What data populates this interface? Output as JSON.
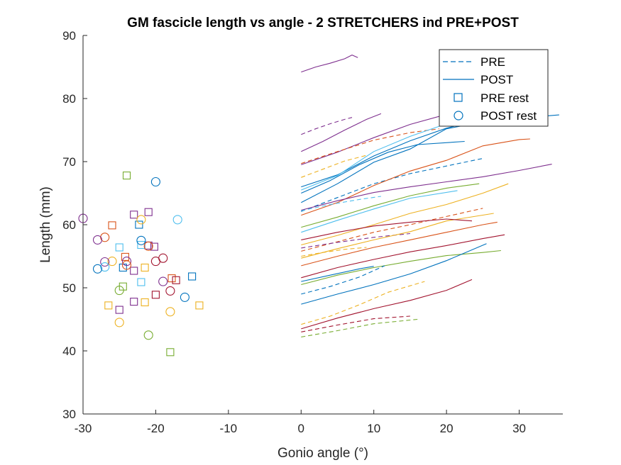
{
  "chart_data": {
    "type": "line",
    "title": "GM fascicle length vs angle - 2 STRETCHERS ind PRE+POST",
    "xlabel": "Gonio angle (°)",
    "ylabel": "Length (mm)",
    "xlim": [
      -30,
      36
    ],
    "ylim": [
      30,
      90
    ],
    "xticks": [
      -30,
      -20,
      -10,
      0,
      10,
      20,
      30
    ],
    "yticks": [
      30,
      40,
      50,
      60,
      70,
      80,
      90
    ],
    "grid": false,
    "legend_position": "top-right",
    "legend": [
      {
        "label": "PRE",
        "symbol": "dashed-line",
        "color": "#0072BD"
      },
      {
        "label": "POST",
        "symbol": "solid-line",
        "color": "#0072BD"
      },
      {
        "label": "PRE rest",
        "symbol": "square",
        "color": "#0072BD"
      },
      {
        "label": "POST rest",
        "symbol": "circle",
        "color": "#0072BD"
      }
    ],
    "palette": [
      "#0072BD",
      "#D95319",
      "#EDB120",
      "#7E2F8E",
      "#77AC30",
      "#4DBEEE",
      "#A2142F"
    ],
    "curves": [
      {
        "style": "solid",
        "color": "#7E2F8E",
        "points": [
          [
            0,
            84.2
          ],
          [
            2,
            85.0
          ],
          [
            4,
            85.6
          ],
          [
            6,
            86.3
          ],
          [
            7,
            86.9
          ],
          [
            7.8,
            86.5
          ]
        ]
      },
      {
        "style": "dashed",
        "color": "#7E2F8E",
        "points": [
          [
            0,
            74.3
          ],
          [
            2,
            75.2
          ],
          [
            4,
            76.0
          ],
          [
            6,
            76.7
          ],
          [
            7,
            77.0
          ]
        ]
      },
      {
        "style": "solid",
        "color": "#7E2F8E",
        "points": [
          [
            0,
            71.6
          ],
          [
            3,
            73.2
          ],
          [
            6,
            75.0
          ],
          [
            9,
            76.7
          ],
          [
            11,
            77.6
          ]
        ]
      },
      {
        "style": "solid",
        "color": "#7E2F8E",
        "points": [
          [
            0,
            69.5
          ],
          [
            5,
            71.5
          ],
          [
            10,
            73.8
          ],
          [
            15,
            75.9
          ],
          [
            20,
            77.5
          ],
          [
            25,
            78.2
          ]
        ]
      },
      {
        "style": "dashed",
        "color": "#D95319",
        "points": [
          [
            0,
            69.7
          ],
          [
            5,
            71.6
          ],
          [
            10,
            73.4
          ],
          [
            15,
            74.6
          ],
          [
            19,
            75.2
          ]
        ]
      },
      {
        "style": "dashed",
        "color": "#EDB120",
        "points": [
          [
            0,
            67.5
          ],
          [
            3,
            68.8
          ],
          [
            6,
            70.1
          ],
          [
            9,
            71.0
          ]
        ]
      },
      {
        "style": "solid",
        "color": "#0072BD",
        "points": [
          [
            0,
            66.0
          ],
          [
            5,
            67.9
          ],
          [
            10,
            70.9
          ],
          [
            15,
            73.3
          ],
          [
            20,
            75.3
          ],
          [
            26,
            77.0
          ]
        ]
      },
      {
        "style": "solid",
        "color": "#4DBEEE",
        "points": [
          [
            0,
            65.5
          ],
          [
            5,
            67.8
          ],
          [
            10,
            71.6
          ],
          [
            15,
            74.0
          ],
          [
            20,
            76.0
          ]
        ]
      },
      {
        "style": "solid",
        "color": "#0072BD",
        "points": [
          [
            0,
            63.5
          ],
          [
            5,
            66.5
          ],
          [
            10,
            69.9
          ],
          [
            15,
            72.0
          ],
          [
            20,
            75.2
          ],
          [
            25,
            76.3
          ],
          [
            30,
            76.9
          ],
          [
            35.5,
            77.4
          ]
        ]
      },
      {
        "style": "dashed",
        "color": "#0072BD",
        "points": [
          [
            0,
            62.1
          ],
          [
            5,
            64.3
          ],
          [
            10,
            66.5
          ],
          [
            15,
            68.1
          ],
          [
            20,
            69.3
          ],
          [
            25,
            70.5
          ]
        ]
      },
      {
        "style": "solid",
        "color": "#D95319",
        "points": [
          [
            0,
            61.5
          ],
          [
            5,
            63.5
          ],
          [
            10,
            66.2
          ],
          [
            15,
            68.5
          ],
          [
            20,
            70.2
          ],
          [
            25,
            72.5
          ],
          [
            30,
            73.5
          ],
          [
            31.5,
            73.6
          ]
        ]
      },
      {
        "style": "solid",
        "color": "#0072BD",
        "points": [
          [
            0,
            65.0
          ],
          [
            4,
            67.0
          ],
          [
            8,
            69.5
          ],
          [
            12,
            71.5
          ],
          [
            16,
            72.7
          ],
          [
            22.5,
            73.2
          ]
        ]
      },
      {
        "style": "solid",
        "color": "#7E2F8E",
        "points": [
          [
            0,
            62.3
          ],
          [
            5,
            63.8
          ],
          [
            10,
            65.1
          ],
          [
            15,
            66.0
          ],
          [
            20,
            66.8
          ],
          [
            25,
            67.6
          ],
          [
            30,
            68.6
          ],
          [
            34.5,
            69.6
          ]
        ]
      },
      {
        "style": "dashed",
        "color": "#4DBEEE",
        "points": [
          [
            0,
            62.2
          ],
          [
            4,
            63.2
          ],
          [
            8,
            64.0
          ],
          [
            11,
            64.5
          ]
        ]
      },
      {
        "style": "solid",
        "color": "#77AC30",
        "points": [
          [
            0,
            59.6
          ],
          [
            5,
            61.2
          ],
          [
            10,
            63.0
          ],
          [
            15,
            64.6
          ],
          [
            20,
            65.8
          ],
          [
            24.5,
            66.5
          ]
        ]
      },
      {
        "style": "solid",
        "color": "#4DBEEE",
        "points": [
          [
            0,
            58.8
          ],
          [
            5,
            60.7
          ],
          [
            10,
            62.5
          ],
          [
            15,
            64.2
          ],
          [
            21.5,
            65.4
          ]
        ]
      },
      {
        "style": "solid",
        "color": "#EDB120",
        "points": [
          [
            0,
            56.8
          ],
          [
            5,
            58.3
          ],
          [
            10,
            60.0
          ],
          [
            15,
            61.8
          ],
          [
            20,
            63.2
          ],
          [
            25,
            65.0
          ],
          [
            28.5,
            66.5
          ]
        ]
      },
      {
        "style": "dashed",
        "color": "#D95319",
        "points": [
          [
            0,
            55.8
          ],
          [
            5,
            57.3
          ],
          [
            10,
            58.8
          ],
          [
            15,
            60.0
          ],
          [
            20,
            61.3
          ],
          [
            25,
            62.6
          ]
        ]
      },
      {
        "style": "dashed",
        "color": "#7E2F8E",
        "points": [
          [
            0,
            56.3
          ],
          [
            5,
            57.2
          ],
          [
            10,
            58.0
          ],
          [
            15,
            58.6
          ]
        ]
      },
      {
        "style": "solid",
        "color": "#EDB120",
        "points": [
          [
            0,
            54.7
          ],
          [
            5,
            56.2
          ],
          [
            10,
            57.6
          ],
          [
            15,
            58.9
          ],
          [
            20,
            60.6
          ],
          [
            26.5,
            61.8
          ]
        ]
      },
      {
        "style": "solid",
        "color": "#A2142F",
        "points": [
          [
            0,
            57.6
          ],
          [
            5,
            58.8
          ],
          [
            10,
            59.8
          ],
          [
            15,
            60.4
          ],
          [
            20,
            60.9
          ],
          [
            23.5,
            60.6
          ]
        ]
      },
      {
        "style": "solid",
        "color": "#D95319",
        "points": [
          [
            0,
            53.5
          ],
          [
            5,
            55.0
          ],
          [
            10,
            56.4
          ],
          [
            15,
            57.6
          ],
          [
            20,
            58.8
          ],
          [
            25,
            60.0
          ],
          [
            27,
            60.4
          ]
        ]
      },
      {
        "style": "dashed",
        "color": "#EDB120",
        "points": [
          [
            0,
            55.0
          ],
          [
            3,
            55.6
          ],
          [
            6,
            56.1
          ],
          [
            9,
            56.4
          ]
        ]
      },
      {
        "style": "solid",
        "color": "#A2142F",
        "points": [
          [
            0,
            51.6
          ],
          [
            5,
            53.2
          ],
          [
            10,
            54.5
          ],
          [
            15,
            55.7
          ],
          [
            20,
            56.7
          ],
          [
            25,
            57.8
          ],
          [
            28,
            58.4
          ]
        ]
      },
      {
        "style": "solid",
        "color": "#77AC30",
        "points": [
          [
            0,
            50.5
          ],
          [
            5,
            52.0
          ],
          [
            10,
            53.2
          ],
          [
            15,
            54.2
          ],
          [
            20,
            55.1
          ],
          [
            25,
            55.6
          ],
          [
            27.5,
            55.9
          ]
        ]
      },
      {
        "style": "solid",
        "color": "#0072BD",
        "points": [
          [
            0,
            51.0
          ],
          [
            4,
            52.0
          ],
          [
            8,
            53.0
          ],
          [
            10,
            53.4
          ]
        ]
      },
      {
        "style": "dashed",
        "color": "#0072BD",
        "points": [
          [
            0,
            49.0
          ],
          [
            4,
            50.2
          ],
          [
            8,
            51.7
          ],
          [
            11.5,
            53.5
          ]
        ]
      },
      {
        "style": "solid",
        "color": "#0072BD",
        "points": [
          [
            0,
            47.4
          ],
          [
            5,
            49.0
          ],
          [
            10,
            50.5
          ],
          [
            15,
            52.2
          ],
          [
            20,
            54.3
          ],
          [
            25.5,
            57.0
          ]
        ]
      },
      {
        "style": "dashed",
        "color": "#EDB120",
        "points": [
          [
            0,
            44.2
          ],
          [
            4,
            45.5
          ],
          [
            8,
            47.3
          ],
          [
            12,
            49.3
          ],
          [
            17,
            51.0
          ]
        ]
      },
      {
        "style": "solid",
        "color": "#A2142F",
        "points": [
          [
            0,
            43.5
          ],
          [
            5,
            45.2
          ],
          [
            10,
            46.7
          ],
          [
            15,
            48.0
          ],
          [
            20,
            49.6
          ],
          [
            23.5,
            51.3
          ]
        ]
      },
      {
        "style": "dashed",
        "color": "#A2142F",
        "points": [
          [
            0,
            43.0
          ],
          [
            5,
            44.1
          ],
          [
            10,
            45.1
          ],
          [
            15,
            45.5
          ]
        ]
      },
      {
        "style": "dashed",
        "color": "#77AC30",
        "points": [
          [
            0,
            42.2
          ],
          [
            5,
            43.2
          ],
          [
            10,
            44.3
          ],
          [
            16,
            45.0
          ]
        ]
      }
    ],
    "pre_rest": [
      {
        "x": -24,
        "y": 67.8,
        "color": "#77AC30"
      },
      {
        "x": -21,
        "y": 62.0,
        "color": "#7E2F8E"
      },
      {
        "x": -23,
        "y": 61.6,
        "color": "#7E2F8E"
      },
      {
        "x": -22.3,
        "y": 60.0,
        "color": "#0072BD"
      },
      {
        "x": -26,
        "y": 59.9,
        "color": "#D95319"
      },
      {
        "x": -21,
        "y": 56.7,
        "color": "#7E2F8E"
      },
      {
        "x": -20.2,
        "y": 56.5,
        "color": "#7E2F8E"
      },
      {
        "x": -25,
        "y": 56.4,
        "color": "#4DBEEE"
      },
      {
        "x": -22,
        "y": 56.8,
        "color": "#4DBEEE"
      },
      {
        "x": -24.2,
        "y": 54.9,
        "color": "#D95319"
      },
      {
        "x": -24.5,
        "y": 53.2,
        "color": "#0072BD"
      },
      {
        "x": -21.5,
        "y": 53.2,
        "color": "#EDB120"
      },
      {
        "x": -23,
        "y": 52.7,
        "color": "#7E2F8E"
      },
      {
        "x": -17.8,
        "y": 51.5,
        "color": "#D95319"
      },
      {
        "x": -17.2,
        "y": 51.2,
        "color": "#A2142F"
      },
      {
        "x": -15,
        "y": 51.8,
        "color": "#0072BD"
      },
      {
        "x": -22,
        "y": 50.9,
        "color": "#4DBEEE"
      },
      {
        "x": -24.5,
        "y": 50.2,
        "color": "#77AC30"
      },
      {
        "x": -20,
        "y": 48.9,
        "color": "#A2142F"
      },
      {
        "x": -23,
        "y": 47.8,
        "color": "#7E2F8E"
      },
      {
        "x": -21.5,
        "y": 47.7,
        "color": "#EDB120"
      },
      {
        "x": -26.5,
        "y": 47.2,
        "color": "#EDB120"
      },
      {
        "x": -14,
        "y": 47.2,
        "color": "#EDB120"
      },
      {
        "x": -25,
        "y": 46.5,
        "color": "#7E2F8E"
      },
      {
        "x": -18,
        "y": 39.8,
        "color": "#77AC30"
      }
    ],
    "post_rest": [
      {
        "x": -20,
        "y": 66.8,
        "color": "#0072BD"
      },
      {
        "x": -30,
        "y": 61.0,
        "color": "#7E2F8E"
      },
      {
        "x": -17,
        "y": 60.8,
        "color": "#4DBEEE"
      },
      {
        "x": -22,
        "y": 60.8,
        "color": "#EDB120"
      },
      {
        "x": -27,
        "y": 58.0,
        "color": "#D95319"
      },
      {
        "x": -28,
        "y": 57.6,
        "color": "#7E2F8E"
      },
      {
        "x": -22,
        "y": 57.5,
        "color": "#0072BD"
      },
      {
        "x": -21,
        "y": 56.6,
        "color": "#D95319"
      },
      {
        "x": -19,
        "y": 54.7,
        "color": "#A2142F"
      },
      {
        "x": -20,
        "y": 54.2,
        "color": "#A2142F"
      },
      {
        "x": -24,
        "y": 54.2,
        "color": "#7E2F8E"
      },
      {
        "x": -26,
        "y": 54.2,
        "color": "#EDB120"
      },
      {
        "x": -27,
        "y": 54.1,
        "color": "#7E2F8E"
      },
      {
        "x": -24,
        "y": 53.6,
        "color": "#D95319"
      },
      {
        "x": -27,
        "y": 53.3,
        "color": "#4DBEEE"
      },
      {
        "x": -28,
        "y": 53.0,
        "color": "#0072BD"
      },
      {
        "x": -19,
        "y": 51.0,
        "color": "#7E2F8E"
      },
      {
        "x": -25,
        "y": 49.6,
        "color": "#77AC30"
      },
      {
        "x": -18,
        "y": 49.5,
        "color": "#A2142F"
      },
      {
        "x": -16,
        "y": 48.5,
        "color": "#0072BD"
      },
      {
        "x": -18,
        "y": 46.2,
        "color": "#EDB120"
      },
      {
        "x": -25,
        "y": 44.5,
        "color": "#EDB120"
      },
      {
        "x": -21,
        "y": 42.5,
        "color": "#77AC30"
      }
    ]
  }
}
